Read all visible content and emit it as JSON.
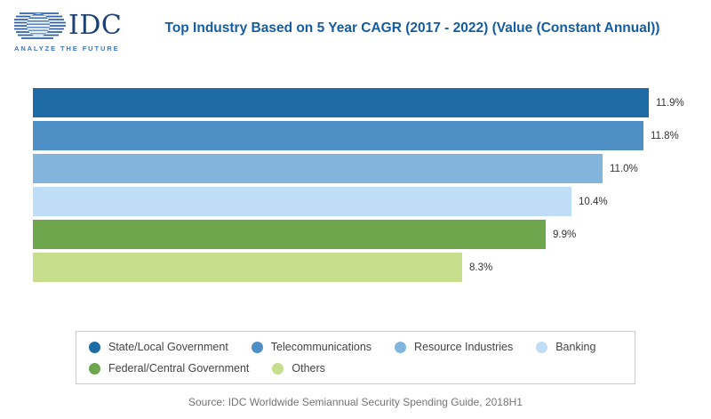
{
  "logo": {
    "name": "IDC",
    "tagline": "ANALYZE THE FUTURE"
  },
  "chart_data": {
    "type": "bar",
    "orientation": "horizontal",
    "title": "Top Industry Based on 5 Year CAGR (2017 - 2022) (Value (Constant Annual))",
    "categories": [
      "State/Local Government",
      "Telecommunications",
      "Resource Industries",
      "Banking",
      "Federal/Central Government",
      "Others"
    ],
    "values": [
      11.9,
      11.8,
      11.0,
      10.4,
      9.9,
      8.3
    ],
    "value_labels": [
      "11.9%",
      "11.8%",
      "11.0%",
      "10.4%",
      "9.9%",
      "8.3%"
    ],
    "colors": [
      "#1F6BA5",
      "#4E90C6",
      "#82B4DC",
      "#BFDDF6",
      "#6EA64D",
      "#C7DE8C"
    ],
    "unit": "%",
    "xlim": [
      0,
      12
    ],
    "grid": false,
    "bar_value_labels_visible": true,
    "legend_position": "bottom"
  },
  "source": "Source: IDC Worldwide Semiannual Security Spending Guide, 2018H1",
  "colors": {
    "title_text": "#155CA2",
    "value_label_text": "#333333",
    "source_text": "#757575",
    "legend_border": "#cbcbcb",
    "logo_navy": "#1E4175",
    "logo_blue": "#3F76B6"
  }
}
